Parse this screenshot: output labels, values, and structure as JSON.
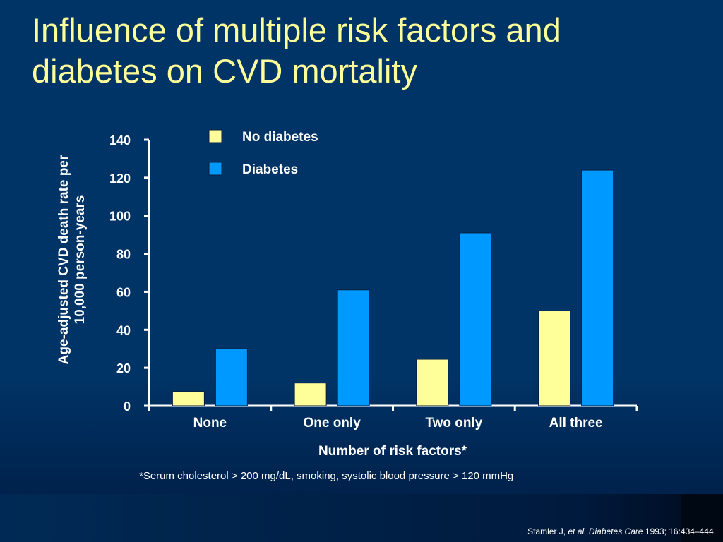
{
  "slide": {
    "title": "Influence of multiple risk factors and diabetes on CVD mortality",
    "footnote": "*Serum cholesterol > 200 mg/dL, smoking, systolic blood pressure > 120 mmHg",
    "citation": {
      "authors": "Stamler J, ",
      "etal": "et al.",
      "journal": "Diabetes Care",
      "details": " 1993; 16:434–444."
    }
  },
  "colors": {
    "background": "#003366",
    "title": "#ffff99",
    "no_diabetes": "#ffff99",
    "diabetes": "#0099ff",
    "text": "#ffffff"
  },
  "chart_data": {
    "type": "bar",
    "categories": [
      "None",
      "One only",
      "Two only",
      "All three"
    ],
    "series": [
      {
        "name": "No diabetes",
        "values": [
          7.5,
          12,
          24.5,
          50
        ]
      },
      {
        "name": "Diabetes",
        "values": [
          30,
          61,
          91,
          124
        ]
      }
    ],
    "xlabel": "Number of risk factors*",
    "ylabel": "Age-adjusted CVD death rate per 10,000 person-years",
    "ylim": [
      0,
      140
    ],
    "yticks": [
      0,
      20,
      40,
      60,
      80,
      100,
      120,
      140
    ],
    "grid": false,
    "legend_position": "top-center"
  }
}
